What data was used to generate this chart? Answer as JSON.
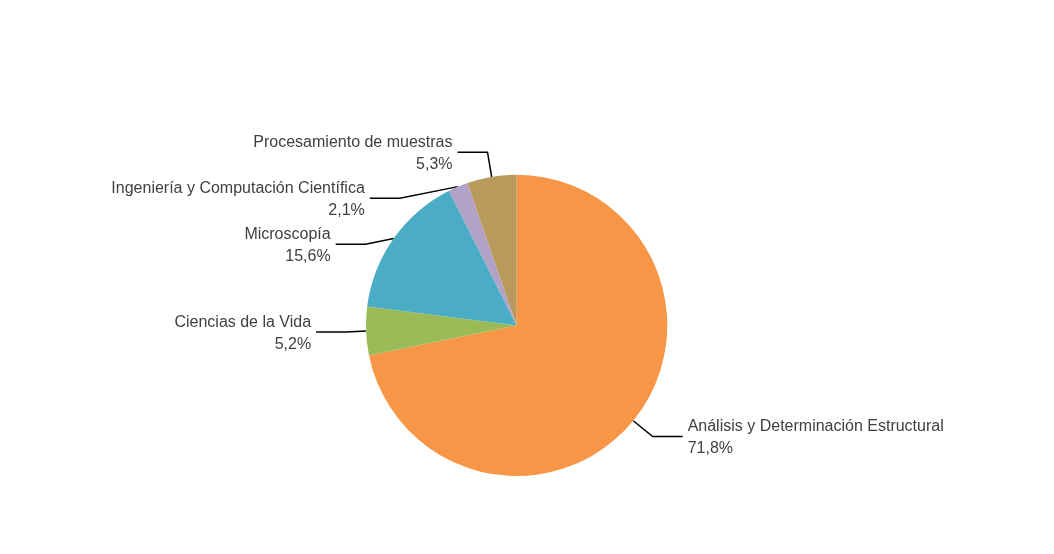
{
  "chart_data": {
    "type": "pie",
    "categories": [
      "Análisis y Determinación Estructural",
      "Ciencias de la Vida",
      "Microscopía",
      "Ingeniería y Computación Científica",
      "Procesamiento de muestras"
    ],
    "values": [
      71.8,
      5.2,
      15.6,
      2.1,
      5.3
    ],
    "colors": [
      "#f79646",
      "#9bbb59",
      "#4bacc6",
      "#b3a2c7",
      "#b89a5c"
    ],
    "value_labels": [
      "71,8%",
      "5,2%",
      "15,6%",
      "2,1%",
      "5,3%"
    ],
    "legend": false
  }
}
